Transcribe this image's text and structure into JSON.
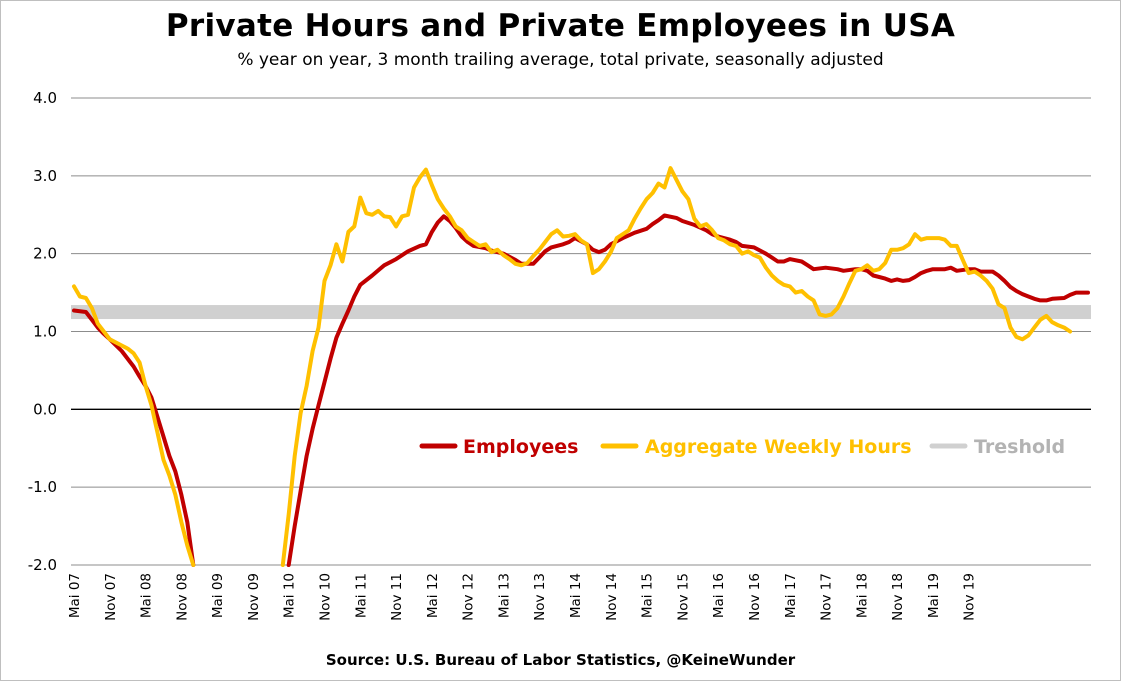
{
  "chart_data": {
    "type": "line",
    "title": "Private Hours and Private Employees in USA",
    "subtitle": "% year on year, 3 month trailing average, total private, seasonally adjusted",
    "source": "Source: U.S. Bureau of Labor Statistics,  @KeineWunder",
    "xlabel": "",
    "ylabel": "",
    "ylim": [
      -2.0,
      4.0
    ],
    "yticks": [
      "4.0",
      "3.0",
      "2.0",
      "1.0",
      "0.0",
      "-1.0",
      "-2.0"
    ],
    "xticks": [
      "Mai 07",
      "Nov 07",
      "Mai 08",
      "Nov 08",
      "Mai 09",
      "Nov 09",
      "Mai 10",
      "Nov 10",
      "Mai 11",
      "Nov 11",
      "Mai 12",
      "Nov 12",
      "Mai 13",
      "Nov 13",
      "Mai 14",
      "Nov 14",
      "Mai 15",
      "Nov 15",
      "Mai 16",
      "Nov 16",
      "Mai 17",
      "Nov 17",
      "Mai 18",
      "Nov 18",
      "Mai 19",
      "Nov 19"
    ],
    "grid": true,
    "legend_position": "center-right",
    "threshold": {
      "name": "Treshold",
      "y": 1.25,
      "color": "#d0d0d0"
    },
    "series": [
      {
        "name": "Employees",
        "color": "#c00000",
        "points": [
          [
            0,
            1.27
          ],
          [
            2,
            1.25
          ],
          [
            3,
            1.15
          ],
          [
            4,
            1.05
          ],
          [
            5,
            0.97
          ],
          [
            6,
            0.9
          ],
          [
            8,
            0.75
          ],
          [
            10,
            0.55
          ],
          [
            11,
            0.42
          ],
          [
            12,
            0.3
          ],
          [
            13,
            0.15
          ],
          [
            14,
            -0.1
          ],
          [
            15,
            -0.35
          ],
          [
            16,
            -0.6
          ],
          [
            17,
            -0.8
          ],
          [
            18,
            -1.1
          ],
          [
            19,
            -1.45
          ],
          [
            20,
            -2.0
          ],
          [
            36,
            -2.0
          ],
          [
            37,
            -1.5
          ],
          [
            38,
            -1.05
          ],
          [
            39,
            -0.6
          ],
          [
            40,
            -0.25
          ],
          [
            41,
            0.05
          ],
          [
            42,
            0.35
          ],
          [
            43,
            0.65
          ],
          [
            44,
            0.92
          ],
          [
            45,
            1.1
          ],
          [
            46,
            1.27
          ],
          [
            47,
            1.45
          ],
          [
            48,
            1.6
          ],
          [
            50,
            1.72
          ],
          [
            52,
            1.85
          ],
          [
            54,
            1.93
          ],
          [
            56,
            2.03
          ],
          [
            58,
            2.1
          ],
          [
            59,
            2.12
          ],
          [
            60,
            2.28
          ],
          [
            61,
            2.4
          ],
          [
            62,
            2.48
          ],
          [
            63,
            2.42
          ],
          [
            64,
            2.33
          ],
          [
            65,
            2.22
          ],
          [
            66,
            2.15
          ],
          [
            67,
            2.1
          ],
          [
            69,
            2.07
          ],
          [
            70,
            2.04
          ],
          [
            72,
            2.0
          ],
          [
            74,
            1.92
          ],
          [
            75,
            1.87
          ],
          [
            77,
            1.87
          ],
          [
            78,
            1.95
          ],
          [
            79,
            2.03
          ],
          [
            80,
            2.08
          ],
          [
            82,
            2.12
          ],
          [
            83,
            2.15
          ],
          [
            84,
            2.2
          ],
          [
            86,
            2.12
          ],
          [
            87,
            2.05
          ],
          [
            88,
            2.02
          ],
          [
            89,
            2.05
          ],
          [
            90,
            2.12
          ],
          [
            92,
            2.2
          ],
          [
            94,
            2.27
          ],
          [
            96,
            2.32
          ],
          [
            97,
            2.38
          ],
          [
            98,
            2.43
          ],
          [
            99,
            2.49
          ],
          [
            101,
            2.46
          ],
          [
            102,
            2.42
          ],
          [
            104,
            2.37
          ],
          [
            106,
            2.3
          ],
          [
            107,
            2.25
          ],
          [
            108,
            2.22
          ],
          [
            110,
            2.18
          ],
          [
            111,
            2.15
          ],
          [
            112,
            2.1
          ],
          [
            114,
            2.08
          ],
          [
            116,
            2.0
          ],
          [
            117,
            1.95
          ],
          [
            118,
            1.9
          ],
          [
            119,
            1.9
          ],
          [
            120,
            1.93
          ],
          [
            122,
            1.9
          ],
          [
            123,
            1.85
          ],
          [
            124,
            1.8
          ],
          [
            126,
            1.82
          ],
          [
            128,
            1.8
          ],
          [
            129,
            1.78
          ],
          [
            131,
            1.8
          ],
          [
            132,
            1.8
          ],
          [
            133,
            1.78
          ],
          [
            134,
            1.72
          ],
          [
            135,
            1.7
          ],
          [
            136,
            1.68
          ],
          [
            137,
            1.65
          ],
          [
            138,
            1.67
          ],
          [
            139,
            1.65
          ],
          [
            140,
            1.66
          ],
          [
            141,
            1.7
          ],
          [
            142,
            1.75
          ],
          [
            143,
            1.78
          ],
          [
            144,
            1.8
          ],
          [
            146,
            1.8
          ],
          [
            147,
            1.82
          ],
          [
            148,
            1.78
          ],
          [
            150,
            1.8
          ],
          [
            151,
            1.8
          ],
          [
            152,
            1.77
          ],
          [
            154,
            1.77
          ],
          [
            155,
            1.72
          ],
          [
            156,
            1.65
          ],
          [
            157,
            1.57
          ],
          [
            158,
            1.52
          ],
          [
            159,
            1.48
          ],
          [
            160,
            1.45
          ],
          [
            161,
            1.42
          ],
          [
            162,
            1.4
          ],
          [
            163,
            1.4
          ],
          [
            164,
            1.42
          ],
          [
            166,
            1.43
          ],
          [
            167,
            1.47
          ],
          [
            168,
            1.5
          ],
          [
            170,
            1.5
          ]
        ]
      },
      {
        "name": "Aggregate Weekly Hours",
        "color": "#ffc000",
        "points": [
          [
            0,
            1.58
          ],
          [
            1,
            1.45
          ],
          [
            2,
            1.43
          ],
          [
            3,
            1.3
          ],
          [
            4,
            1.1
          ],
          [
            5,
            1.0
          ],
          [
            6,
            0.9
          ],
          [
            8,
            0.82
          ],
          [
            9,
            0.78
          ],
          [
            10,
            0.72
          ],
          [
            11,
            0.6
          ],
          [
            12,
            0.3
          ],
          [
            13,
            0.05
          ],
          [
            14,
            -0.3
          ],
          [
            15,
            -0.65
          ],
          [
            16,
            -0.85
          ],
          [
            17,
            -1.1
          ],
          [
            18,
            -1.45
          ],
          [
            19,
            -1.75
          ],
          [
            20,
            -2.0
          ],
          [
            35,
            -2.0
          ],
          [
            36,
            -1.35
          ],
          [
            37,
            -0.6
          ],
          [
            38,
            -0.05
          ],
          [
            39,
            0.3
          ],
          [
            40,
            0.75
          ],
          [
            41,
            1.05
          ],
          [
            42,
            1.65
          ],
          [
            43,
            1.85
          ],
          [
            44,
            2.12
          ],
          [
            45,
            1.9
          ],
          [
            46,
            2.28
          ],
          [
            47,
            2.35
          ],
          [
            48,
            2.72
          ],
          [
            49,
            2.52
          ],
          [
            50,
            2.5
          ],
          [
            51,
            2.55
          ],
          [
            52,
            2.48
          ],
          [
            53,
            2.47
          ],
          [
            54,
            2.35
          ],
          [
            55,
            2.48
          ],
          [
            56,
            2.5
          ],
          [
            57,
            2.85
          ],
          [
            58,
            2.98
          ],
          [
            59,
            3.08
          ],
          [
            60,
            2.88
          ],
          [
            61,
            2.7
          ],
          [
            62,
            2.58
          ],
          [
            63,
            2.48
          ],
          [
            64,
            2.35
          ],
          [
            65,
            2.3
          ],
          [
            66,
            2.2
          ],
          [
            67,
            2.15
          ],
          [
            68,
            2.1
          ],
          [
            69,
            2.12
          ],
          [
            70,
            2.02
          ],
          [
            71,
            2.05
          ],
          [
            72,
            1.98
          ],
          [
            73,
            1.93
          ],
          [
            74,
            1.87
          ],
          [
            75,
            1.85
          ],
          [
            76,
            1.88
          ],
          [
            77,
            1.97
          ],
          [
            78,
            2.05
          ],
          [
            79,
            2.15
          ],
          [
            80,
            2.25
          ],
          [
            81,
            2.3
          ],
          [
            82,
            2.22
          ],
          [
            83,
            2.23
          ],
          [
            84,
            2.25
          ],
          [
            85,
            2.17
          ],
          [
            86,
            2.12
          ],
          [
            87,
            1.75
          ],
          [
            88,
            1.8
          ],
          [
            89,
            1.9
          ],
          [
            90,
            2.02
          ],
          [
            91,
            2.2
          ],
          [
            92,
            2.25
          ],
          [
            93,
            2.3
          ],
          [
            94,
            2.45
          ],
          [
            95,
            2.58
          ],
          [
            96,
            2.7
          ],
          [
            97,
            2.78
          ],
          [
            98,
            2.9
          ],
          [
            99,
            2.85
          ],
          [
            100,
            3.1
          ],
          [
            101,
            2.95
          ],
          [
            102,
            2.8
          ],
          [
            103,
            2.7
          ],
          [
            104,
            2.45
          ],
          [
            105,
            2.35
          ],
          [
            106,
            2.38
          ],
          [
            107,
            2.3
          ],
          [
            108,
            2.2
          ],
          [
            109,
            2.17
          ],
          [
            110,
            2.12
          ],
          [
            111,
            2.1
          ],
          [
            112,
            2.0
          ],
          [
            113,
            2.03
          ],
          [
            114,
            1.98
          ],
          [
            115,
            1.95
          ],
          [
            116,
            1.82
          ],
          [
            117,
            1.72
          ],
          [
            118,
            1.65
          ],
          [
            119,
            1.6
          ],
          [
            120,
            1.58
          ],
          [
            121,
            1.5
          ],
          [
            122,
            1.52
          ],
          [
            123,
            1.45
          ],
          [
            124,
            1.4
          ],
          [
            125,
            1.22
          ],
          [
            126,
            1.2
          ],
          [
            127,
            1.22
          ],
          [
            128,
            1.3
          ],
          [
            129,
            1.45
          ],
          [
            130,
            1.62
          ],
          [
            131,
            1.78
          ],
          [
            132,
            1.8
          ],
          [
            133,
            1.85
          ],
          [
            134,
            1.78
          ],
          [
            135,
            1.8
          ],
          [
            136,
            1.88
          ],
          [
            137,
            2.05
          ],
          [
            138,
            2.05
          ],
          [
            139,
            2.07
          ],
          [
            140,
            2.12
          ],
          [
            141,
            2.25
          ],
          [
            142,
            2.18
          ],
          [
            143,
            2.2
          ],
          [
            145,
            2.2
          ],
          [
            146,
            2.18
          ],
          [
            147,
            2.1
          ],
          [
            148,
            2.1
          ],
          [
            149,
            1.92
          ],
          [
            150,
            1.75
          ],
          [
            151,
            1.77
          ],
          [
            152,
            1.72
          ],
          [
            153,
            1.65
          ],
          [
            154,
            1.55
          ],
          [
            155,
            1.35
          ],
          [
            156,
            1.3
          ],
          [
            157,
            1.05
          ],
          [
            158,
            0.93
          ],
          [
            159,
            0.9
          ],
          [
            160,
            0.95
          ],
          [
            161,
            1.05
          ],
          [
            162,
            1.15
          ],
          [
            163,
            1.2
          ],
          [
            164,
            1.12
          ],
          [
            165,
            1.08
          ],
          [
            166,
            1.05
          ],
          [
            167,
            1.0
          ]
        ]
      }
    ]
  }
}
